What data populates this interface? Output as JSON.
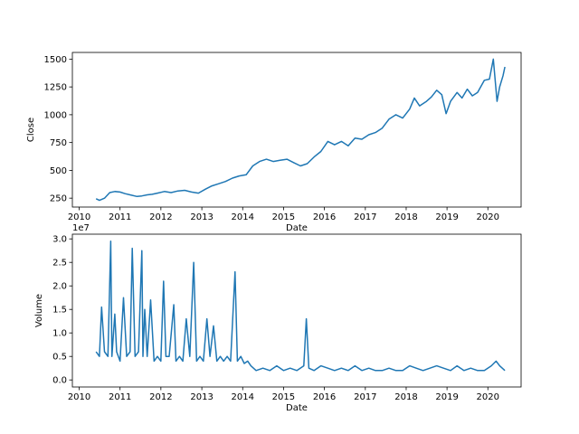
{
  "chart_data": [
    {
      "type": "line",
      "xlabel": "Date",
      "ylabel": "Close",
      "color": "#1f77b4",
      "x_ticks": [
        "2010",
        "2011",
        "2012",
        "2013",
        "2014",
        "2015",
        "2016",
        "2017",
        "2018",
        "2019",
        "2020"
      ],
      "y_ticks": [
        "250",
        "500",
        "750",
        "1000",
        "1250",
        "1500"
      ],
      "ylim": [
        170,
        1560
      ],
      "xlim": [
        "2009-11-01",
        "2020-10-24"
      ],
      "grid": false,
      "series": [
        {
          "x": [
            "2010-06-01",
            "2010-07-01",
            "2010-08-15",
            "2010-10-01",
            "2010-11-15",
            "2011-01-01",
            "2011-02-15",
            "2011-04-01",
            "2011-06-01",
            "2011-07-15",
            "2011-09-01",
            "2011-10-15",
            "2011-12-01",
            "2012-02-01",
            "2012-04-01",
            "2012-06-01",
            "2012-08-01",
            "2012-10-01",
            "2012-12-01",
            "2013-02-01",
            "2013-04-01",
            "2013-06-01",
            "2013-08-01",
            "2013-10-01",
            "2013-12-01",
            "2014-02-01",
            "2014-04-01",
            "2014-06-01",
            "2014-08-01",
            "2014-10-01",
            "2014-12-01",
            "2015-02-01",
            "2015-04-01",
            "2015-06-01",
            "2015-08-01",
            "2015-10-01",
            "2015-12-01",
            "2016-02-01",
            "2016-04-01",
            "2016-06-01",
            "2016-08-01",
            "2016-10-01",
            "2016-12-01",
            "2017-02-01",
            "2017-04-01",
            "2017-06-01",
            "2017-08-01",
            "2017-10-01",
            "2017-12-01",
            "2018-02-01",
            "2018-03-15",
            "2018-05-01",
            "2018-07-01",
            "2018-08-15",
            "2018-10-01",
            "2018-11-15",
            "2018-12-24",
            "2019-02-01",
            "2019-04-01",
            "2019-05-15",
            "2019-07-01",
            "2019-08-15",
            "2019-10-01",
            "2019-12-01",
            "2020-01-15",
            "2020-02-19",
            "2020-03-23",
            "2020-04-15",
            "2020-05-15",
            "2020-06-01"
          ],
          "y": [
            245,
            230,
            250,
            300,
            310,
            305,
            290,
            280,
            265,
            270,
            280,
            285,
            295,
            310,
            300,
            315,
            320,
            305,
            295,
            330,
            360,
            380,
            400,
            430,
            450,
            460,
            540,
            580,
            600,
            580,
            590,
            600,
            570,
            540,
            560,
            620,
            670,
            760,
            730,
            760,
            720,
            790,
            780,
            820,
            840,
            880,
            960,
            1000,
            970,
            1050,
            1150,
            1080,
            1120,
            1160,
            1220,
            1180,
            1010,
            1120,
            1200,
            1150,
            1230,
            1170,
            1200,
            1310,
            1320,
            1500,
            1120,
            1250,
            1350,
            1430
          ]
        }
      ]
    },
    {
      "type": "line",
      "xlabel": "Date",
      "ylabel": "Volume",
      "color": "#1f77b4",
      "x_ticks": [
        "2010",
        "2011",
        "2012",
        "2013",
        "2014",
        "2015",
        "2016",
        "2017",
        "2018",
        "2019",
        "2020"
      ],
      "y_ticks": [
        "0.0",
        "0.5",
        "1.0",
        "1.5",
        "2.0",
        "2.5",
        "3.0"
      ],
      "offset_label": "1e7",
      "ylim": [
        -0.15,
        3.1
      ],
      "xlim": [
        "2009-11-01",
        "2020-10-24"
      ],
      "grid": false,
      "series": [
        {
          "x": [
            "2010-06-01",
            "2010-07-01",
            "2010-07-20",
            "2010-08-15",
            "2010-09-15",
            "2010-10-10",
            "2010-10-20",
            "2010-11-15",
            "2010-12-01",
            "2011-01-01",
            "2011-02-01",
            "2011-03-01",
            "2011-04-01",
            "2011-04-20",
            "2011-05-15",
            "2011-06-15",
            "2011-07-15",
            "2011-07-25",
            "2011-08-10",
            "2011-09-01",
            "2011-10-01",
            "2011-11-01",
            "2011-12-01",
            "2012-01-01",
            "2012-01-25",
            "2012-02-15",
            "2012-03-15",
            "2012-04-25",
            "2012-05-15",
            "2012-06-15",
            "2012-07-15",
            "2012-08-15",
            "2012-09-15",
            "2012-10-20",
            "2012-11-15",
            "2012-12-15",
            "2013-01-15",
            "2013-02-15",
            "2013-03-15",
            "2013-04-15",
            "2013-05-15",
            "2013-06-15",
            "2013-07-15",
            "2013-08-15",
            "2013-09-15",
            "2013-10-25",
            "2013-11-15",
            "2013-12-15",
            "2014-01-15",
            "2014-02-15",
            "2014-03-15",
            "2014-05-01",
            "2014-07-01",
            "2014-09-01",
            "2014-11-01",
            "2015-01-01",
            "2015-03-01",
            "2015-05-01",
            "2015-07-01",
            "2015-07-24",
            "2015-08-15",
            "2015-10-01",
            "2015-12-01",
            "2016-02-01",
            "2016-04-01",
            "2016-06-01",
            "2016-08-01",
            "2016-10-01",
            "2016-12-01",
            "2017-02-01",
            "2017-04-01",
            "2017-06-01",
            "2017-08-01",
            "2017-10-01",
            "2017-12-01",
            "2018-02-01",
            "2018-04-01",
            "2018-06-01",
            "2018-08-01",
            "2018-10-01",
            "2018-12-01",
            "2019-02-01",
            "2019-04-01",
            "2019-06-01",
            "2019-08-01",
            "2019-10-01",
            "2019-12-01",
            "2020-02-01",
            "2020-03-15",
            "2020-04-15",
            "2020-06-01"
          ],
          "y": [
            0.6,
            0.5,
            1.55,
            0.6,
            0.5,
            2.95,
            0.5,
            1.4,
            0.6,
            0.4,
            1.75,
            0.5,
            0.6,
            2.8,
            0.5,
            0.6,
            2.75,
            0.5,
            1.5,
            0.5,
            1.7,
            0.4,
            0.5,
            0.4,
            2.1,
            0.5,
            0.5,
            1.6,
            0.4,
            0.5,
            0.4,
            1.3,
            0.5,
            2.5,
            0.4,
            0.5,
            0.4,
            1.3,
            0.5,
            1.15,
            0.4,
            0.5,
            0.4,
            0.5,
            0.4,
            2.3,
            0.4,
            0.5,
            0.35,
            0.4,
            0.3,
            0.2,
            0.25,
            0.2,
            0.3,
            0.2,
            0.25,
            0.2,
            0.3,
            1.3,
            0.25,
            0.2,
            0.3,
            0.25,
            0.2,
            0.25,
            0.2,
            0.3,
            0.2,
            0.25,
            0.2,
            0.2,
            0.25,
            0.2,
            0.2,
            0.3,
            0.25,
            0.2,
            0.25,
            0.3,
            0.25,
            0.2,
            0.3,
            0.2,
            0.25,
            0.2,
            0.2,
            0.3,
            0.4,
            0.3,
            0.2
          ]
        }
      ]
    }
  ]
}
